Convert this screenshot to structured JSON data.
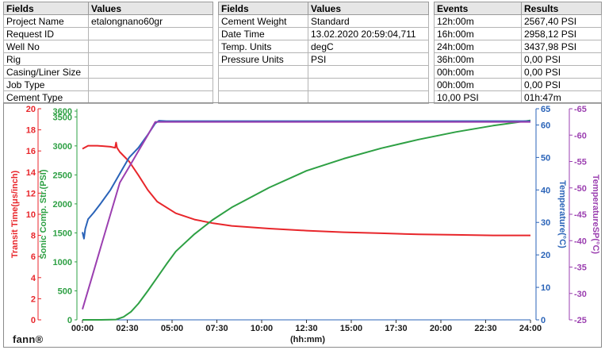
{
  "info_table": {
    "headers": [
      "Fields",
      "Values"
    ],
    "rows": [
      [
        "Project Name",
        "etalongnano60gr"
      ],
      [
        "Request ID",
        ""
      ],
      [
        "Well No",
        ""
      ],
      [
        "Rig",
        ""
      ],
      [
        "Casing/Liner Size",
        ""
      ],
      [
        "Job Type",
        ""
      ],
      [
        "Cement Type",
        ""
      ]
    ]
  },
  "settings_table": {
    "headers": [
      "Fields",
      "Values"
    ],
    "rows": [
      [
        "Cement Weight",
        "Standard"
      ],
      [
        "Date Time",
        "13.02.2020 20:59:04,711"
      ],
      [
        "Temp. Units",
        "degC"
      ],
      [
        "Pressure Units",
        "PSI"
      ],
      [
        "",
        ""
      ],
      [
        "",
        ""
      ],
      [
        "",
        ""
      ]
    ]
  },
  "events_table": {
    "headers": [
      "Events",
      "Results"
    ],
    "rows": [
      [
        "12h:00m",
        "2567,40 PSI"
      ],
      [
        "16h:00m",
        "2958,12 PSI"
      ],
      [
        "24h:00m",
        "3437,98 PSI"
      ],
      [
        "36h:00m",
        "0,00 PSI"
      ],
      [
        "00h:00m",
        "0,00 PSI"
      ],
      [
        "00h:00m",
        "0,00 PSI"
      ],
      [
        "10,00 PSI",
        "01h:47m"
      ]
    ]
  },
  "logo": "fann®",
  "colors": {
    "transit": "#e8262b",
    "strength": "#2ea044",
    "temperature": "#2a63b8",
    "temperature_sp": "#9b3fb0"
  },
  "chart_data": {
    "type": "line",
    "xlabel": "(hh:mm)",
    "x_ticks": [
      "00:00",
      "02:30",
      "05:00",
      "07:30",
      "10:00",
      "12:30",
      "15:00",
      "17:30",
      "20:00",
      "22:30",
      "24:00"
    ],
    "xlim": [
      0,
      24
    ],
    "grid": false,
    "axes": [
      {
        "id": "transit",
        "label": "Transit Time(μs/inch)",
        "side": "left",
        "ylim": [
          0,
          20
        ],
        "ticks": [
          "0",
          "2",
          "4",
          "6",
          "8",
          "10",
          "12",
          "14",
          "16",
          "18",
          "20"
        ]
      },
      {
        "id": "strength",
        "label": "Sonic Comp. Str.(PSI)",
        "side": "left",
        "ylim": [
          0,
          3600
        ],
        "ticks": [
          "0",
          "500",
          "1000",
          "1500",
          "2000",
          "2500",
          "3000",
          "3500",
          "3600"
        ]
      },
      {
        "id": "temperature",
        "label": "Temperature(°C)",
        "side": "right",
        "ylim": [
          0,
          65
        ],
        "ticks": [
          "0",
          "10",
          "20",
          "30",
          "40",
          "50",
          "60",
          "65"
        ]
      },
      {
        "id": "temperature_sp",
        "label": "TemperatureSP(°C)",
        "side": "right",
        "ylim": [
          -25,
          65
        ],
        "ticks": [
          "-25",
          "-30",
          "-35",
          "-40",
          "-45",
          "-50",
          "-55",
          "-60",
          "-65"
        ]
      }
    ],
    "series": [
      {
        "axis": "transit",
        "color": "#e8262b",
        "x": [
          0,
          0.3,
          0.8,
          1.5,
          1.75,
          1.8,
          1.85,
          2.0,
          2.5,
          3.0,
          3.5,
          4.0,
          5.0,
          6.0,
          7.0,
          8.0,
          10.0,
          12.0,
          14.0,
          16.0,
          18.0,
          20.0,
          22.0,
          24.0
        ],
        "y": [
          16.2,
          16.5,
          16.5,
          16.4,
          16.3,
          16.8,
          16.3,
          15.9,
          15.0,
          13.7,
          12.3,
          11.2,
          10.1,
          9.5,
          9.15,
          8.9,
          8.65,
          8.45,
          8.3,
          8.2,
          8.1,
          8.05,
          8.0,
          8.0
        ]
      },
      {
        "axis": "strength",
        "color": "#2ea044",
        "x": [
          0,
          1.0,
          1.8,
          2.2,
          2.6,
          3.0,
          3.5,
          4.0,
          4.5,
          5.0,
          6.0,
          7.0,
          8.0,
          10.0,
          12.0,
          14.0,
          16.0,
          18.0,
          20.0,
          22.0,
          24.0
        ],
        "y": [
          0,
          0,
          5,
          50,
          140,
          280,
          500,
          730,
          960,
          1180,
          1480,
          1730,
          1940,
          2280,
          2570,
          2780,
          2960,
          3110,
          3240,
          3350,
          3440
        ]
      },
      {
        "axis": "temperature",
        "color": "#2a63b8",
        "x": [
          0,
          0.08,
          0.15,
          0.3,
          0.6,
          1.0,
          1.5,
          2.0,
          2.5,
          3.0,
          3.5,
          3.9,
          4.1,
          4.5,
          6.0,
          10.0,
          14.0,
          18.0,
          22.0,
          24.0
        ],
        "y": [
          27,
          25,
          28,
          31,
          33,
          36,
          40,
          45,
          50,
          53,
          57,
          60.5,
          61.3,
          61.2,
          61.2,
          61.2,
          61.2,
          61.2,
          61.2,
          61.2
        ]
      },
      {
        "axis": "temperature_sp",
        "color": "#9b3fb0",
        "x": [
          0,
          0.5,
          1.0,
          1.5,
          2.0,
          2.5,
          3.0,
          3.5,
          3.9,
          4.0,
          24.0
        ],
        "y": [
          -27,
          -33,
          -39,
          -45,
          -51,
          -54,
          -57,
          -60,
          -62.5,
          -62.5,
          -62.5
        ]
      }
    ]
  }
}
